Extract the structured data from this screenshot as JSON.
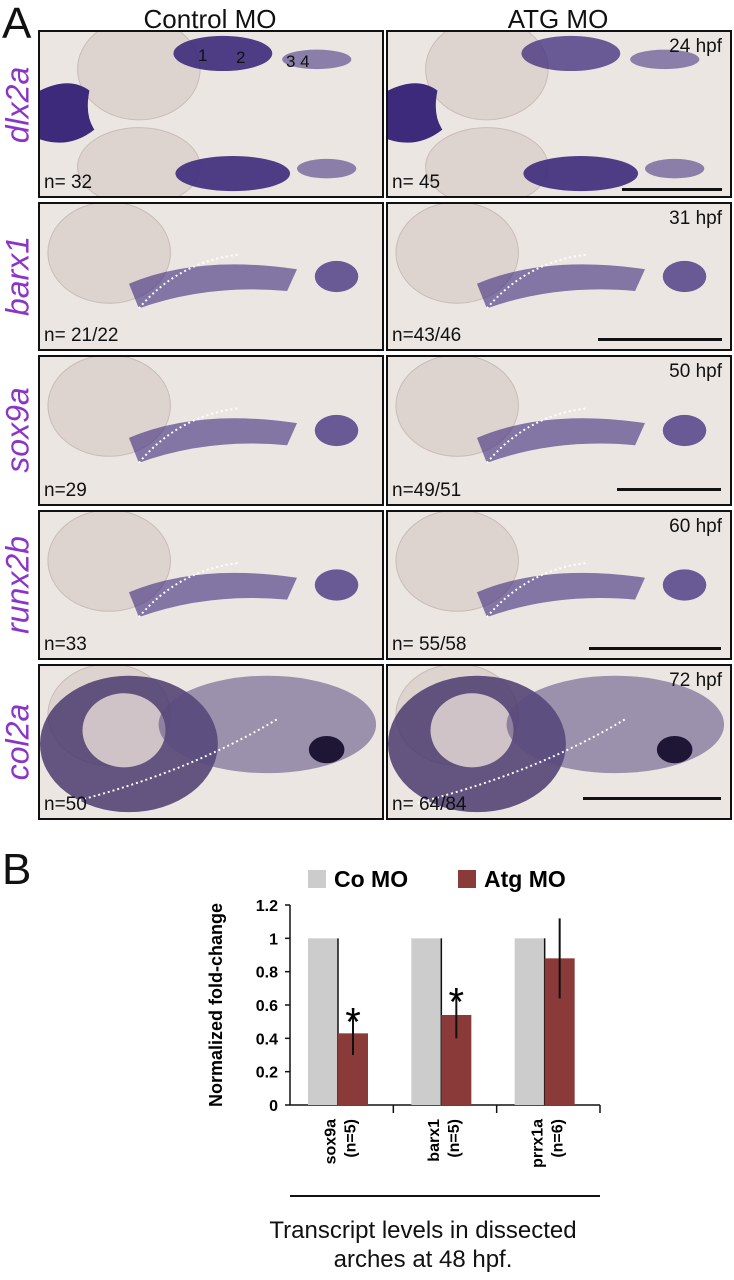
{
  "panel_a": {
    "letter": "A",
    "columns": [
      "Control MO",
      "ATG MO"
    ],
    "rows": [
      {
        "gene": "dlx2a",
        "stage": "24 hpf",
        "control_n": "n= 32",
        "atg_n": "n= 45",
        "arch_numbers": [
          "1",
          "2",
          "3 4"
        ]
      },
      {
        "gene": "barx1",
        "stage": "31 hpf",
        "control_n": "n= 21/22",
        "atg_n": "n=43/46"
      },
      {
        "gene": "sox9a",
        "stage": "50 hpf",
        "control_n": "n=29",
        "atg_n": "n=49/51"
      },
      {
        "gene": "runx2b",
        "stage": "60 hpf",
        "control_n": "n=33",
        "atg_n": "n= 55/58"
      },
      {
        "gene": "col2a",
        "stage": "72 hpf",
        "control_n": "n=50",
        "atg_n": "n= 64/84"
      }
    ],
    "colors": {
      "stain": "#3d2a7a",
      "gene_label": "#8a35c8",
      "background": "#efe9e6"
    }
  },
  "panel_b": {
    "letter": "B",
    "caption_line1": "Transcript levels in dissected",
    "caption_line2": "arches at 48 hpf."
  },
  "chart_data": {
    "type": "bar",
    "categories": [
      "sox9a\n(n=5)",
      "barx1\n(n=5)",
      "prrx1a\n(n=6)"
    ],
    "category_labels": [
      {
        "gene": "sox9a",
        "n": "(n=5)"
      },
      {
        "gene": "barx1",
        "n": "(n=5)"
      },
      {
        "gene": "prrx1a",
        "n": "(n=6)"
      }
    ],
    "series": [
      {
        "name": "Co MO",
        "color": "#cccccc",
        "values": [
          1.0,
          1.0,
          1.0
        ],
        "errors": [
          0,
          0,
          0
        ]
      },
      {
        "name": "Atg MO",
        "color": "#8b3a3a",
        "values": [
          0.43,
          0.54,
          0.88
        ],
        "errors": [
          0.13,
          0.14,
          0.24
        ]
      }
    ],
    "significance": [
      "*",
      "*",
      ""
    ],
    "ylabel": "Normalized fold-change",
    "ylim": [
      0,
      1.2
    ],
    "yticks": [
      "0",
      "0.2",
      "0.4",
      "0.6",
      "0.8",
      "1",
      "1.2"
    ],
    "legend_position": "top",
    "grid": false
  }
}
